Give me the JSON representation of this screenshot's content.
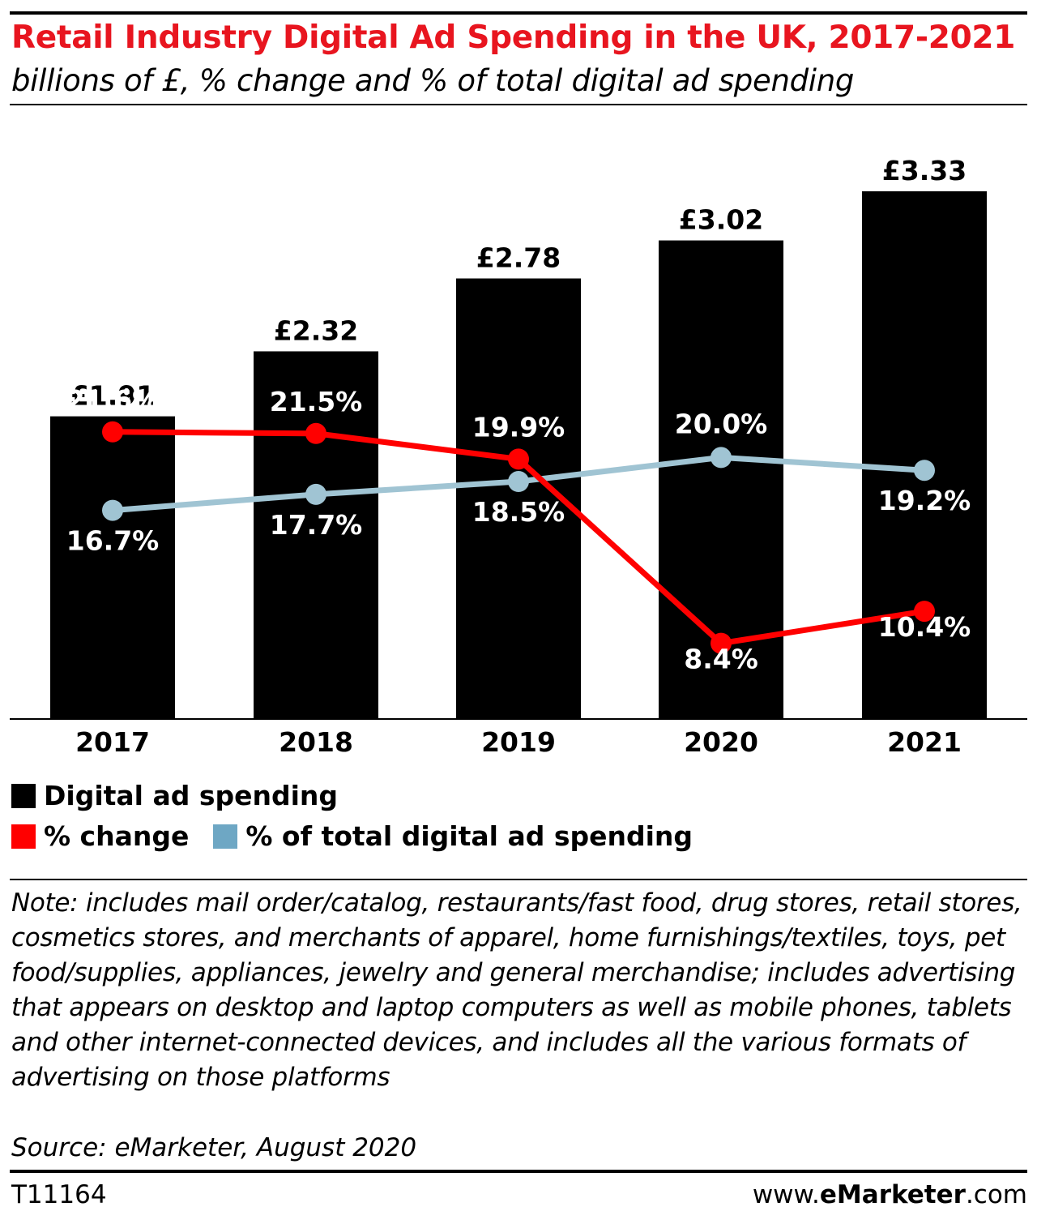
{
  "chart_data": {
    "type": "bar",
    "title": "Retail Industry Digital Ad Spending in the UK, 2017-2021",
    "subtitle": "billions of £, % change and % of total digital ad spending",
    "categories": [
      "2017",
      "2018",
      "2019",
      "2020",
      "2021"
    ],
    "series": [
      {
        "name": "Digital ad spending",
        "type": "bar",
        "color": "#000000",
        "values": [
          1.91,
          2.32,
          2.78,
          3.02,
          3.33
        ],
        "labels": [
          "£1.91",
          "£2.32",
          "£2.78",
          "£3.02",
          "£3.33"
        ]
      },
      {
        "name": "% change",
        "type": "line",
        "color": "#ff0000",
        "values": [
          21.6,
          21.5,
          19.9,
          8.4,
          10.4
        ],
        "labels": [
          "21.6%",
          "21.5%",
          "19.9%",
          "8.4%",
          "10.4%"
        ]
      },
      {
        "name": "% of total digital ad spending",
        "type": "line",
        "color": "#a0c4d3",
        "values": [
          16.7,
          17.7,
          18.5,
          20.0,
          19.2
        ],
        "labels": [
          "16.7%",
          "17.7%",
          "18.5%",
          "20.0%",
          "19.2%"
        ]
      }
    ],
    "grid": false,
    "legend_position": "bottom-left"
  },
  "legend": {
    "items": [
      {
        "label": "Digital ad spending",
        "color": "#000000"
      },
      {
        "label": "% change",
        "color": "#ff0000"
      },
      {
        "label": "% of total digital ad spending",
        "color": "#6ea7c4"
      }
    ]
  },
  "note": "Note: includes mail order/catalog, restaurants/fast food, drug stores, retail stores, cosmetics stores, and merchants of apparel, home furnishings/textiles, toys, pet food/supplies, appliances, jewelry and general merchandise; includes advertising that appears on desktop and laptop computers as well as mobile phones, tablets and other internet-connected devices, and includes all the various formats of advertising on those platforms",
  "source": "Source: eMarketer, August 2020",
  "footer": {
    "chart_id": "T11164",
    "brand_prefix": "www.",
    "brand_name": "eMarketer",
    "brand_suffix": ".com"
  }
}
